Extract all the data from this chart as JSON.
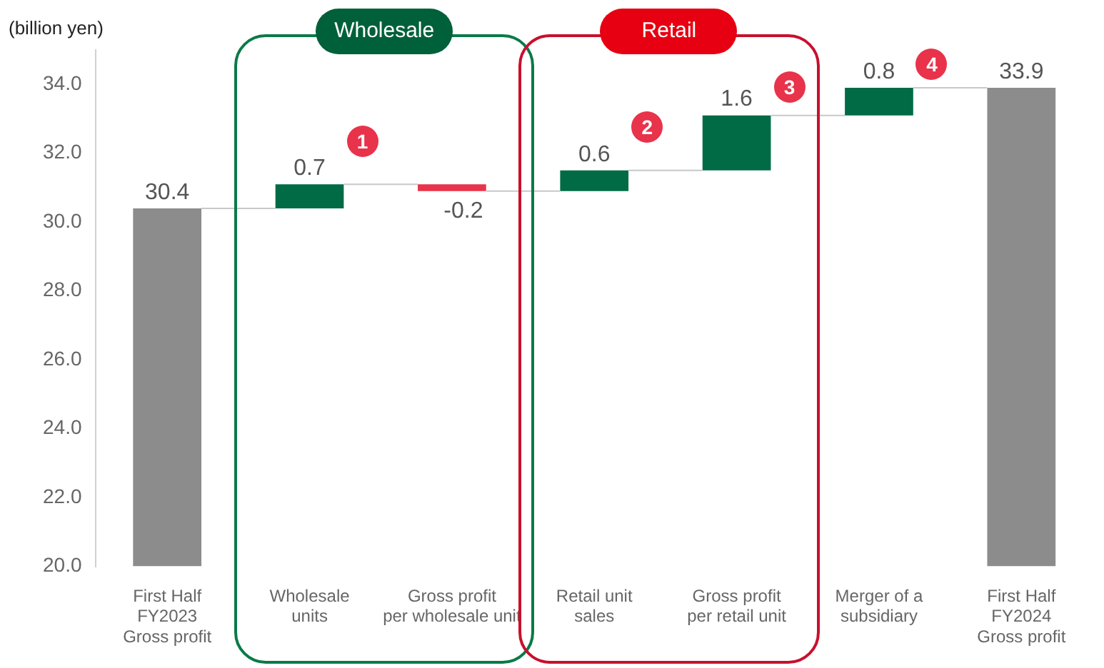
{
  "chart_data": {
    "type": "bar",
    "ylabel": "(billion yen)",
    "categories": [
      "First Half\nFY2023\nGross profit",
      "Wholesale\nunits",
      "Gross profit\nper wholesale unit",
      "Retail unit\nsales",
      "Gross profit\nper retail unit",
      "Merger of a\nsubsidiary",
      "First Half\nFY2024\nGross profit"
    ],
    "base": [
      20,
      30.4,
      31.1,
      30.9,
      31.5,
      33.1,
      20
    ],
    "values": [
      10.4,
      0.7,
      -0.2,
      0.6,
      1.6,
      0.8,
      13.9
    ],
    "value_labels": [
      "30.4",
      "0.7",
      "-0.2",
      "0.6",
      "1.6",
      "0.8",
      "33.9"
    ],
    "colors": [
      "#8c8c8c",
      "#006b45",
      "#e8334a",
      "#006b45",
      "#006b45",
      "#006b45",
      "#8c8c8c"
    ],
    "ylim": [
      20,
      35
    ],
    "yticks": [
      {
        "value": 20,
        "label": "20.0"
      },
      {
        "value": 22,
        "label": "22.0"
      },
      {
        "value": 24,
        "label": "24.0"
      },
      {
        "value": 26,
        "label": "26.0"
      },
      {
        "value": 28,
        "label": "28.0"
      },
      {
        "value": 30,
        "label": "30.0"
      },
      {
        "value": 32,
        "label": "32.0"
      },
      {
        "value": 34,
        "label": "34.0"
      }
    ],
    "grid": false,
    "legend": false,
    "annotations": [
      "Wholesale",
      "Retail",
      {
        "text": "1",
        "x": "Wholesale\nunits",
        "y": 31.1
      },
      {
        "text": "2",
        "x": "Retail unit\nsales",
        "y": 31.5
      },
      {
        "text": "3",
        "x": "Gross profit\nper retail unit",
        "y": 33.1
      },
      {
        "text": "4",
        "x": "Merger of a\nsubsidiary",
        "y": 33.9
      }
    ]
  }
}
